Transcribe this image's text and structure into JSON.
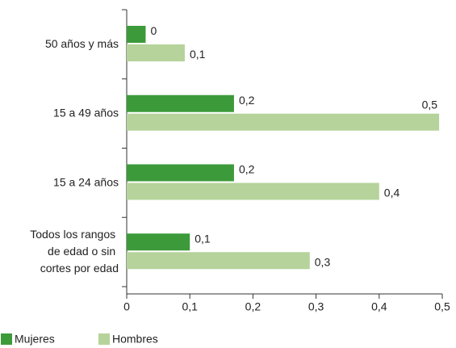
{
  "chart_data": {
    "type": "bar",
    "orientation": "horizontal",
    "categories": [
      "50 años y más",
      "15 a 49 años",
      "15 a 24 años",
      "Todos los rangos de edad o sin cortes por edad"
    ],
    "series": [
      {
        "name": "Mujeres",
        "color": "#3d9a3a",
        "values": [
          0.03,
          0.17,
          0.17,
          0.1
        ],
        "value_labels": [
          "0",
          "0,2",
          "0,2",
          "0,1"
        ]
      },
      {
        "name": "Hombres",
        "color": "#b5d39a",
        "values": [
          0.092,
          0.495,
          0.4,
          0.29
        ],
        "value_labels": [
          "0,1",
          "0,5",
          "0,4",
          "0,3"
        ]
      }
    ],
    "xlim": [
      0,
      0.5
    ],
    "xticks": [
      0,
      {
        "value": 0.1,
        "label": "0,1"
      },
      {
        "value": 0.2,
        "label": "0,2"
      },
      {
        "value": 0.3,
        "label": "0,3"
      },
      {
        "value": 0.4,
        "label": "0,4"
      },
      {
        "value": 0.5,
        "label": "0,5"
      }
    ],
    "legend": "bottom-left"
  }
}
